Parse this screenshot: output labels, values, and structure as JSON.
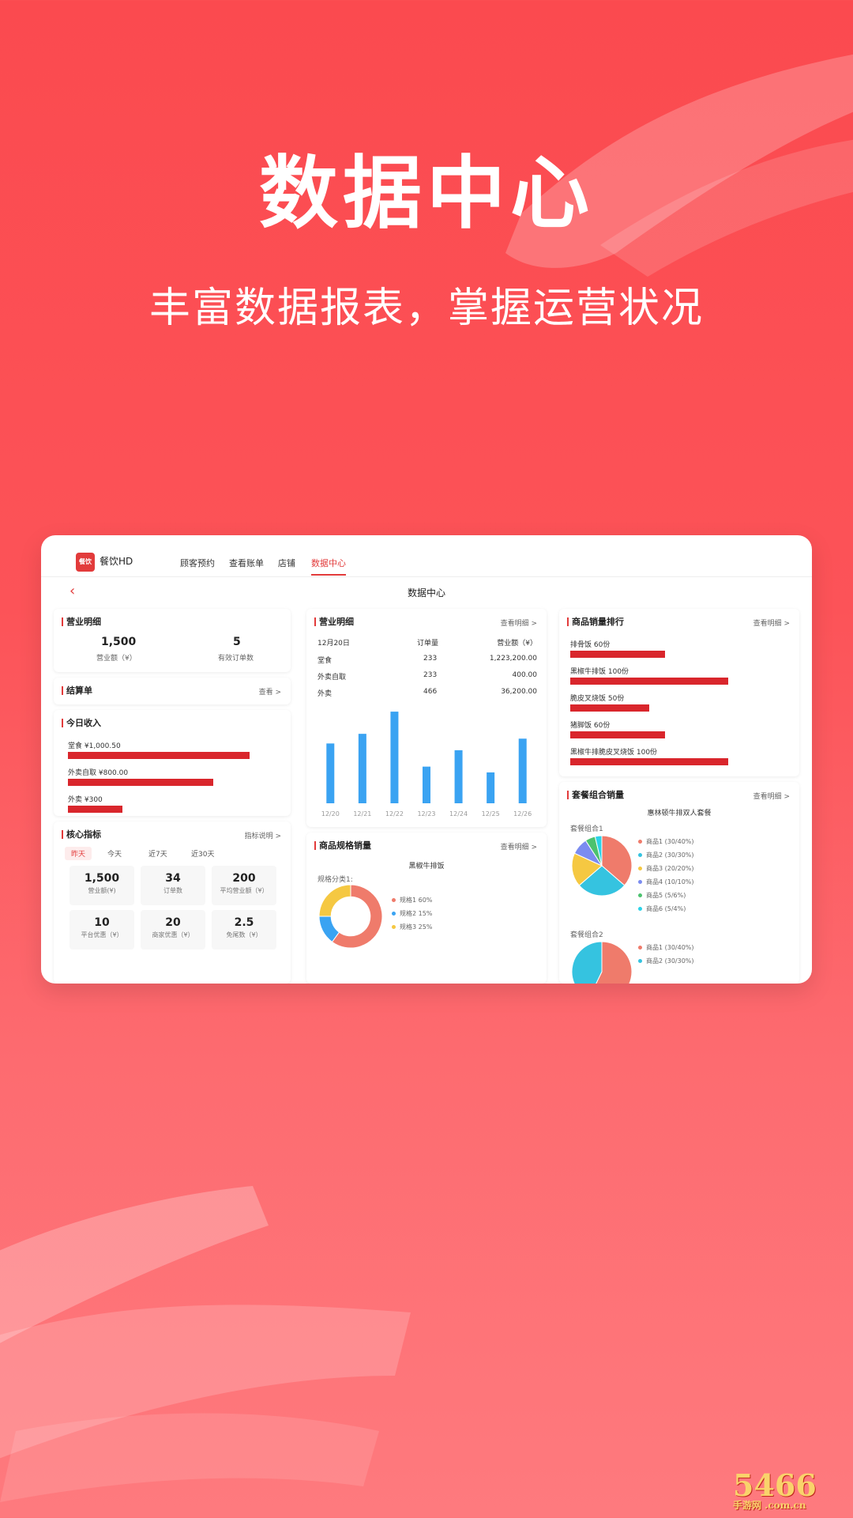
{
  "headline": "数据中心",
  "subline": "丰富数据报表，掌握运营状况",
  "app": {
    "logo_text": "餐饮",
    "brand": "餐饮HD",
    "nav": [
      "顾客预约",
      "查看账单",
      "店铺",
      "数据中心"
    ],
    "active_nav": "数据中心",
    "page_title": "数据中心"
  },
  "business_detail": {
    "title": "营业明细",
    "revenue_value": "1,500",
    "revenue_label": "营业额（¥）",
    "orders_value": "5",
    "orders_label": "有效订单数"
  },
  "settlement": {
    "title": "结算单",
    "link": "查看 >"
  },
  "today_income": {
    "title": "今日收入",
    "rows": [
      {
        "label": "堂食 ¥1,000.50",
        "value": 1000.5
      },
      {
        "label": "外卖自取 ¥800.00",
        "value": 800
      },
      {
        "label": "外卖 ¥300",
        "value": 300
      }
    ]
  },
  "core_metrics": {
    "title": "核心指标",
    "link": "指标说明 >",
    "tabs": [
      "昨天",
      "今天",
      "近7天",
      "近30天"
    ],
    "metrics": [
      {
        "value": "1,500",
        "label": "营业额(¥)"
      },
      {
        "value": "34",
        "label": "订单数"
      },
      {
        "value": "200",
        "label": "平均营业额（¥）"
      },
      {
        "value": "10",
        "label": "平台优惠（¥）"
      },
      {
        "value": "20",
        "label": "商家优惠（¥）"
      },
      {
        "value": "2.5",
        "label": "免尾数（¥）"
      }
    ]
  },
  "business_detail2": {
    "title": "营业明细",
    "link": "查看明细 >",
    "headers": [
      "12月20日",
      "订单量",
      "营业额（¥）"
    ],
    "rows": [
      [
        "堂食",
        "233",
        "1,223,200.00"
      ],
      [
        "外卖自取",
        "233",
        "400.00"
      ],
      [
        "外卖",
        "466",
        "36,200.00"
      ]
    ]
  },
  "chart_data": {
    "type": "bar",
    "categories": [
      "12/20",
      "12/21",
      "12/22",
      "12/23",
      "12/24",
      "12/25",
      "12/26"
    ],
    "values": [
      62,
      72,
      95,
      38,
      55,
      32,
      67
    ],
    "ylim": [
      0,
      100
    ],
    "color": "#3aa3f2"
  },
  "spec_sales": {
    "title": "商品规格销量",
    "link": "查看明细 >",
    "product": "黑椒牛排饭",
    "category_label": "规格分类1:",
    "legend": [
      {
        "label": "规格1 60%",
        "value": 60,
        "color": "#ef7b6b"
      },
      {
        "label": "规格2 15%",
        "value": 15,
        "color": "#3aa3f2"
      },
      {
        "label": "规格3 25%",
        "value": 25,
        "color": "#f5c842"
      }
    ]
  },
  "ranking": {
    "title": "商品销量排行",
    "link": "查看明细 >",
    "items": [
      {
        "label": "排骨饭  60份",
        "value": 60
      },
      {
        "label": "黑椒牛排饭  100份",
        "value": 100
      },
      {
        "label": "脆皮叉烧饭  50份",
        "value": 50
      },
      {
        "label": "猪脚饭  60份",
        "value": 60
      },
      {
        "label": "黑椒牛排脆皮叉烧饭  100份",
        "value": 100
      }
    ]
  },
  "combo_sales": {
    "title": "套餐组合销量",
    "link": "查看明细 >",
    "subtitle": "惠林顿牛排双人套餐",
    "group1_label": "套餐组合1",
    "group1_legend": [
      {
        "label": "商品1 (30/40%)",
        "value": 40,
        "color": "#ef7b6b"
      },
      {
        "label": "商品2 (30/30%)",
        "value": 30,
        "color": "#35c3e0"
      },
      {
        "label": "商品3 (20/20%)",
        "value": 20,
        "color": "#f5c842"
      },
      {
        "label": "商品4 (10/10%)",
        "value": 10,
        "color": "#7b8cf0"
      },
      {
        "label": "商品5 (5/6%)",
        "value": 6,
        "color": "#4cc26f"
      },
      {
        "label": "商品6 (5/4%)",
        "value": 4,
        "color": "#2bd3e8"
      }
    ],
    "group2_label": "套餐组合2",
    "group2_legend": [
      {
        "label": "商品1 (30/40%)",
        "value": 40,
        "color": "#ef7b6b"
      },
      {
        "label": "商品2 (30/30%)",
        "value": 30,
        "color": "#35c3e0"
      }
    ]
  },
  "watermark": "5466",
  "watermark_sub": "手游网 .com.cn"
}
